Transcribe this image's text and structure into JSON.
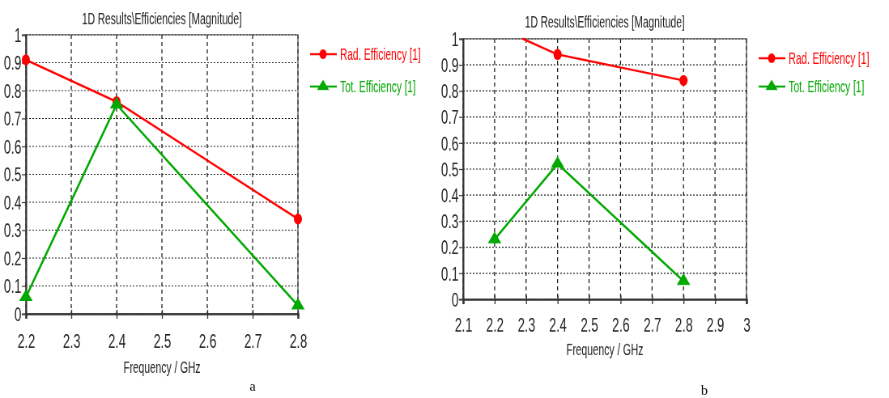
{
  "chart_data": [
    {
      "type": "line",
      "title": "1D Results\\Efficiencies [Magnitude]",
      "xlabel": "Frequency / GHz",
      "x": [
        2.2,
        2.4,
        2.8
      ],
      "series": [
        {
          "name": "Rad. Efficiency [1]",
          "color": "#ff0000",
          "marker": "circle",
          "values": [
            0.91,
            0.76,
            0.34
          ]
        },
        {
          "name": "Tot. Efficiency [1]",
          "color": "#00a800",
          "marker": "triangle",
          "values": [
            0.06,
            0.75,
            0.03
          ]
        }
      ],
      "xlim": [
        2.2,
        2.8
      ],
      "xticks": [
        2.2,
        2.3,
        2.4,
        2.5,
        2.6,
        2.7,
        2.8
      ],
      "ylim": [
        0,
        1
      ],
      "yticks": [
        0,
        0.1,
        0.2,
        0.3,
        0.4,
        0.5,
        0.6,
        0.7,
        0.8,
        0.9,
        1
      ],
      "grid": true,
      "legend": "top right",
      "annotations": [
        "a"
      ]
    },
    {
      "type": "line",
      "title": "1D Results\\Efficiencies [Magnitude]",
      "xlabel": "Frequency / GHz",
      "x": [
        2.2,
        2.4,
        2.8
      ],
      "series": [
        {
          "name": "Rad. Efficiency [1]",
          "color": "#ff0000",
          "marker": "circle",
          "x": [
            2.4,
            2.8
          ],
          "values": [
            0.94,
            0.84
          ]
        },
        {
          "color": "#ff0000",
          "marker": "none",
          "x": [
            2.29,
            2.4
          ],
          "values": [
            1,
            0.94
          ]
        },
        {
          "name": "Tot. Efficiency [1]",
          "color": "#00a800",
          "marker": "triangle",
          "values": [
            0.23,
            0.52,
            0.07
          ]
        }
      ],
      "xlim": [
        2.1,
        3
      ],
      "xticks": [
        2.1,
        2.2,
        2.3,
        2.4,
        2.5,
        2.6,
        2.7,
        2.8,
        2.9,
        3
      ],
      "ylim": [
        0,
        1
      ],
      "yticks": [
        0,
        0.1,
        0.2,
        0.3,
        0.4,
        0.5,
        0.6,
        0.7,
        0.8,
        0.9,
        1
      ],
      "grid": true,
      "legend": "top right",
      "annotations": [
        "b"
      ]
    }
  ]
}
